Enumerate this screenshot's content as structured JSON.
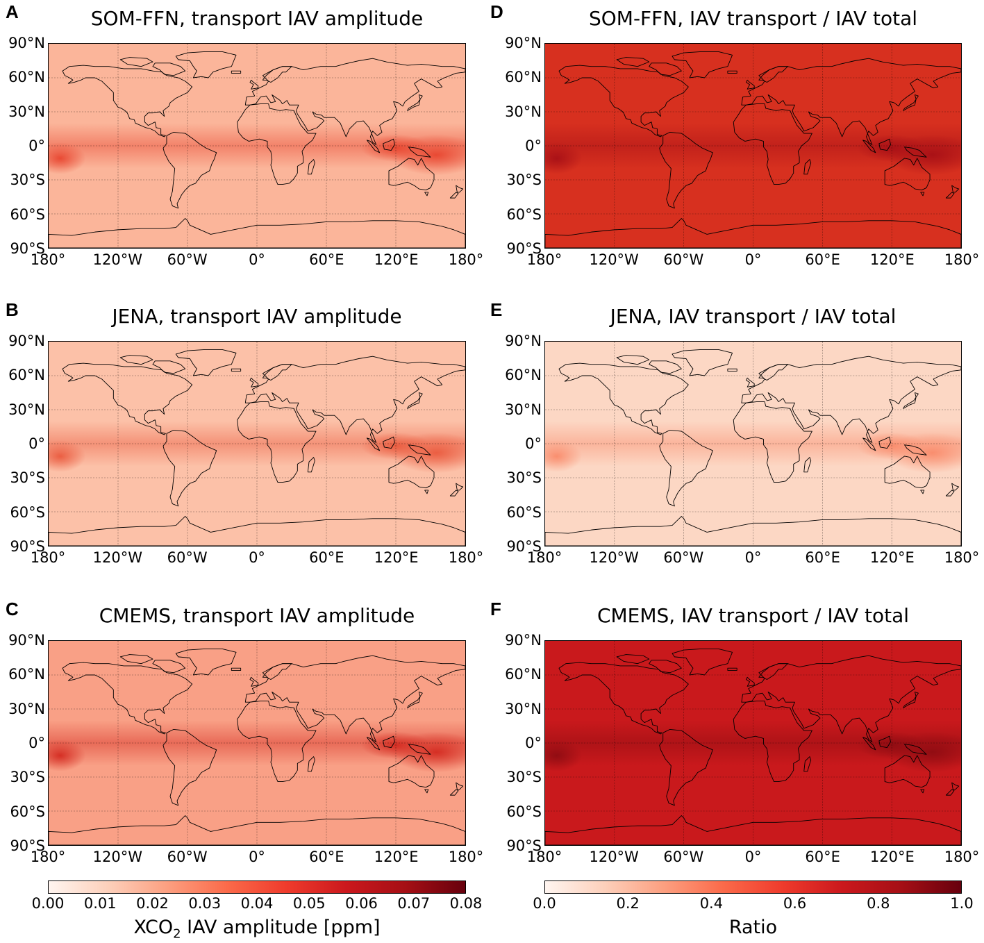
{
  "panels": [
    {
      "letter": "A",
      "title": "SOM-FFN, transport IAV amplitude"
    },
    {
      "letter": "D",
      "title": "SOM-FFN, IAV transport / IAV total"
    },
    {
      "letter": "B",
      "title": "JENA, transport IAV amplitude"
    },
    {
      "letter": "E",
      "title": "JENA, IAV transport / IAV total"
    },
    {
      "letter": "C",
      "title": "CMEMS, transport IAV amplitude"
    },
    {
      "letter": "F",
      "title": "CMEMS, IAV transport / IAV total"
    }
  ],
  "lat_labels": [
    "90°N",
    "60°N",
    "30°N",
    "0°",
    "30°S",
    "60°S",
    "90°S"
  ],
  "lon_labels": [
    "180°",
    "120°W",
    "60°W",
    "0°",
    "60°E",
    "120°E",
    "180°"
  ],
  "colorbars": [
    {
      "ticks": [
        "0.00",
        "0.01",
        "0.02",
        "0.03",
        "0.04",
        "0.05",
        "0.06",
        "0.07",
        "0.08"
      ],
      "label_main": "XCO",
      "label_sub": "2",
      "label_rest": " IAV amplitude [ppm]",
      "range": [
        0,
        0.08
      ]
    },
    {
      "ticks": [
        "0.0",
        "0.2",
        "0.4",
        "0.6",
        "0.8",
        "1.0"
      ],
      "label_main": "Ratio",
      "label_sub": "",
      "label_rest": "",
      "range": [
        0,
        1
      ]
    }
  ],
  "colors": {
    "cmap_low": "#fff5f0",
    "cmap_mid": "#f4664a",
    "cmap_high": "#67000d",
    "panel_A_base": "#fbb59a",
    "panel_B_base": "#fcc1a8",
    "panel_C_base": "#f9a086",
    "panel_D_base": "#d7301f",
    "panel_E_base": "#fcd7c4",
    "panel_F_base": "#c9191c"
  }
}
